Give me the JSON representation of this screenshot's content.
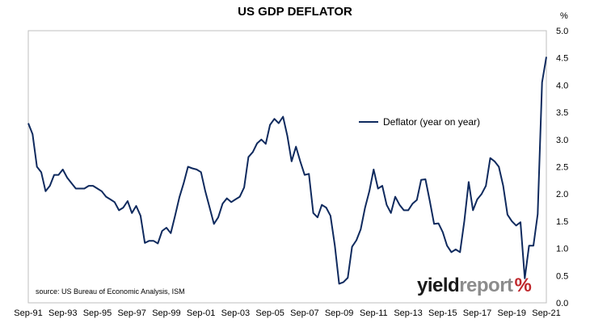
{
  "chart_data": {
    "type": "line",
    "title": "US GDP DEFLATOR",
    "y_unit": "%",
    "xlabel": "",
    "ylabel": "",
    "ylim": [
      0.0,
      5.0
    ],
    "y_ticks": [
      "0.0",
      "0.5",
      "1.0",
      "1.5",
      "2.0",
      "2.5",
      "3.0",
      "3.5",
      "4.0",
      "4.5",
      "5.0"
    ],
    "x_ticks": [
      "Sep-91",
      "Sep-93",
      "Sep-95",
      "Sep-97",
      "Sep-99",
      "Sep-01",
      "Sep-03",
      "Sep-05",
      "Sep-07",
      "Sep-09",
      "Sep-11",
      "Sep-13",
      "Sep-15",
      "Sep-17",
      "Sep-19",
      "Sep-21"
    ],
    "x_start": "Sep-91",
    "x_frequency": "quarterly",
    "legend": "top-right",
    "grid": false,
    "series": [
      {
        "name": "Deflator (year on year)",
        "color": "#0f2a5e",
        "values": [
          3.3,
          3.1,
          2.5,
          2.4,
          2.05,
          2.15,
          2.35,
          2.35,
          2.45,
          2.3,
          2.2,
          2.1,
          2.1,
          2.1,
          2.15,
          2.15,
          2.1,
          2.05,
          1.95,
          1.9,
          1.85,
          1.7,
          1.75,
          1.87,
          1.65,
          1.78,
          1.6,
          1.1,
          1.14,
          1.14,
          1.09,
          1.32,
          1.38,
          1.28,
          1.6,
          1.94,
          2.2,
          2.5,
          2.47,
          2.45,
          2.4,
          2.05,
          1.75,
          1.45,
          1.57,
          1.82,
          1.92,
          1.85,
          1.9,
          1.95,
          2.12,
          2.68,
          2.77,
          2.93,
          3.0,
          2.92,
          3.27,
          3.38,
          3.3,
          3.42,
          3.07,
          2.6,
          2.87,
          2.6,
          2.35,
          2.37,
          1.65,
          1.57,
          1.8,
          1.75,
          1.6,
          1.05,
          0.35,
          0.38,
          0.46,
          1.03,
          1.15,
          1.35,
          1.75,
          2.05,
          2.45,
          2.1,
          2.15,
          1.8,
          1.65,
          1.95,
          1.8,
          1.7,
          1.7,
          1.82,
          1.89,
          2.26,
          2.27,
          1.87,
          1.45,
          1.46,
          1.3,
          1.05,
          0.93,
          0.98,
          0.93,
          1.5,
          2.22,
          1.7,
          1.9,
          2.0,
          2.15,
          2.66,
          2.6,
          2.5,
          2.15,
          1.62,
          1.5,
          1.42,
          1.48,
          0.45,
          1.05,
          1.05,
          1.63,
          4.05,
          4.52
        ]
      }
    ],
    "source_note": "source: US Bureau of Economic Analysis, ISM",
    "logo": {
      "word1": "yield",
      "word2": "report",
      "pct": "%"
    }
  }
}
